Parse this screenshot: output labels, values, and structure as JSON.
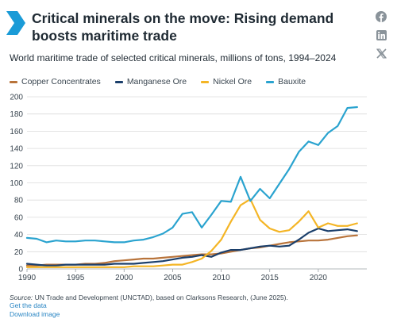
{
  "header": {
    "title": "Critical minerals on the move: Rising demand boosts maritime trade",
    "icons": [
      "facebook-icon",
      "linkedin-icon",
      "x-icon"
    ]
  },
  "subtitle": "World maritime trade of selected critical minerals, millions of tons, 1994–2024",
  "colors": {
    "copper": "#b8733a",
    "manganese": "#1b3f6b",
    "nickel": "#f4b525",
    "bauxite": "#2aa3cf",
    "accent": "#1a9bd7",
    "grid": "#dcdcdc"
  },
  "chart_data": {
    "type": "line",
    "title": "World maritime trade of selected critical minerals, millions of tons, 1994–2024",
    "xlabel": "",
    "ylabel": "",
    "xlim": [
      1990,
      2025
    ],
    "ylim": [
      0,
      200
    ],
    "xticks": [
      1990,
      1995,
      2000,
      2005,
      2010,
      2015,
      2020
    ],
    "yticks": [
      0,
      20,
      40,
      60,
      80,
      100,
      120,
      140,
      160,
      180,
      200
    ],
    "grid": true,
    "legend_position": "top-left",
    "x": [
      1990,
      1991,
      1992,
      1993,
      1994,
      1995,
      1996,
      1997,
      1998,
      1999,
      2000,
      2001,
      2002,
      2003,
      2004,
      2005,
      2006,
      2007,
      2008,
      2009,
      2010,
      2011,
      2012,
      2013,
      2014,
      2015,
      2016,
      2017,
      2018,
      2019,
      2020,
      2021,
      2022,
      2023,
      2024
    ],
    "series": [
      {
        "name": "Copper Concentrates",
        "color": "#b8733a",
        "values": [
          4,
          4,
          5,
          5,
          5,
          5,
          6,
          6,
          7,
          9,
          10,
          11,
          12,
          12,
          13,
          14,
          15,
          16,
          17,
          17,
          18,
          20,
          22,
          24,
          25,
          27,
          29,
          31,
          32,
          33,
          33,
          34,
          36,
          38,
          39
        ]
      },
      {
        "name": "Manganese Ore",
        "color": "#1b3f6b",
        "values": [
          6,
          5,
          4,
          4,
          5,
          5,
          5,
          5,
          5,
          6,
          6,
          6,
          7,
          8,
          9,
          11,
          13,
          14,
          16,
          14,
          19,
          22,
          22,
          24,
          26,
          27,
          26,
          27,
          34,
          42,
          47,
          44,
          45,
          46,
          44
        ]
      },
      {
        "name": "Nickel Ore",
        "color": "#f4b525",
        "values": [
          2,
          2,
          2,
          2,
          2,
          2,
          2,
          2,
          2,
          2,
          2,
          3,
          3,
          3,
          4,
          5,
          5,
          8,
          12,
          21,
          34,
          55,
          74,
          81,
          57,
          47,
          43,
          45,
          55,
          67,
          48,
          53,
          50,
          50,
          53
        ]
      },
      {
        "name": "Bauxite",
        "color": "#2aa3cf",
        "values": [
          36,
          35,
          31,
          33,
          32,
          32,
          33,
          33,
          32,
          31,
          31,
          33,
          34,
          37,
          41,
          48,
          64,
          66,
          48,
          63,
          79,
          78,
          107,
          79,
          93,
          82,
          99,
          116,
          136,
          148,
          144,
          158,
          166,
          187,
          188
        ]
      }
    ]
  },
  "footer": {
    "source_label": "Source:",
    "source_text": "UN Trade and Development (UNCTAD), based on Clarksons Research, (June 2025).",
    "get_data": "Get the data",
    "download": "Download image"
  }
}
